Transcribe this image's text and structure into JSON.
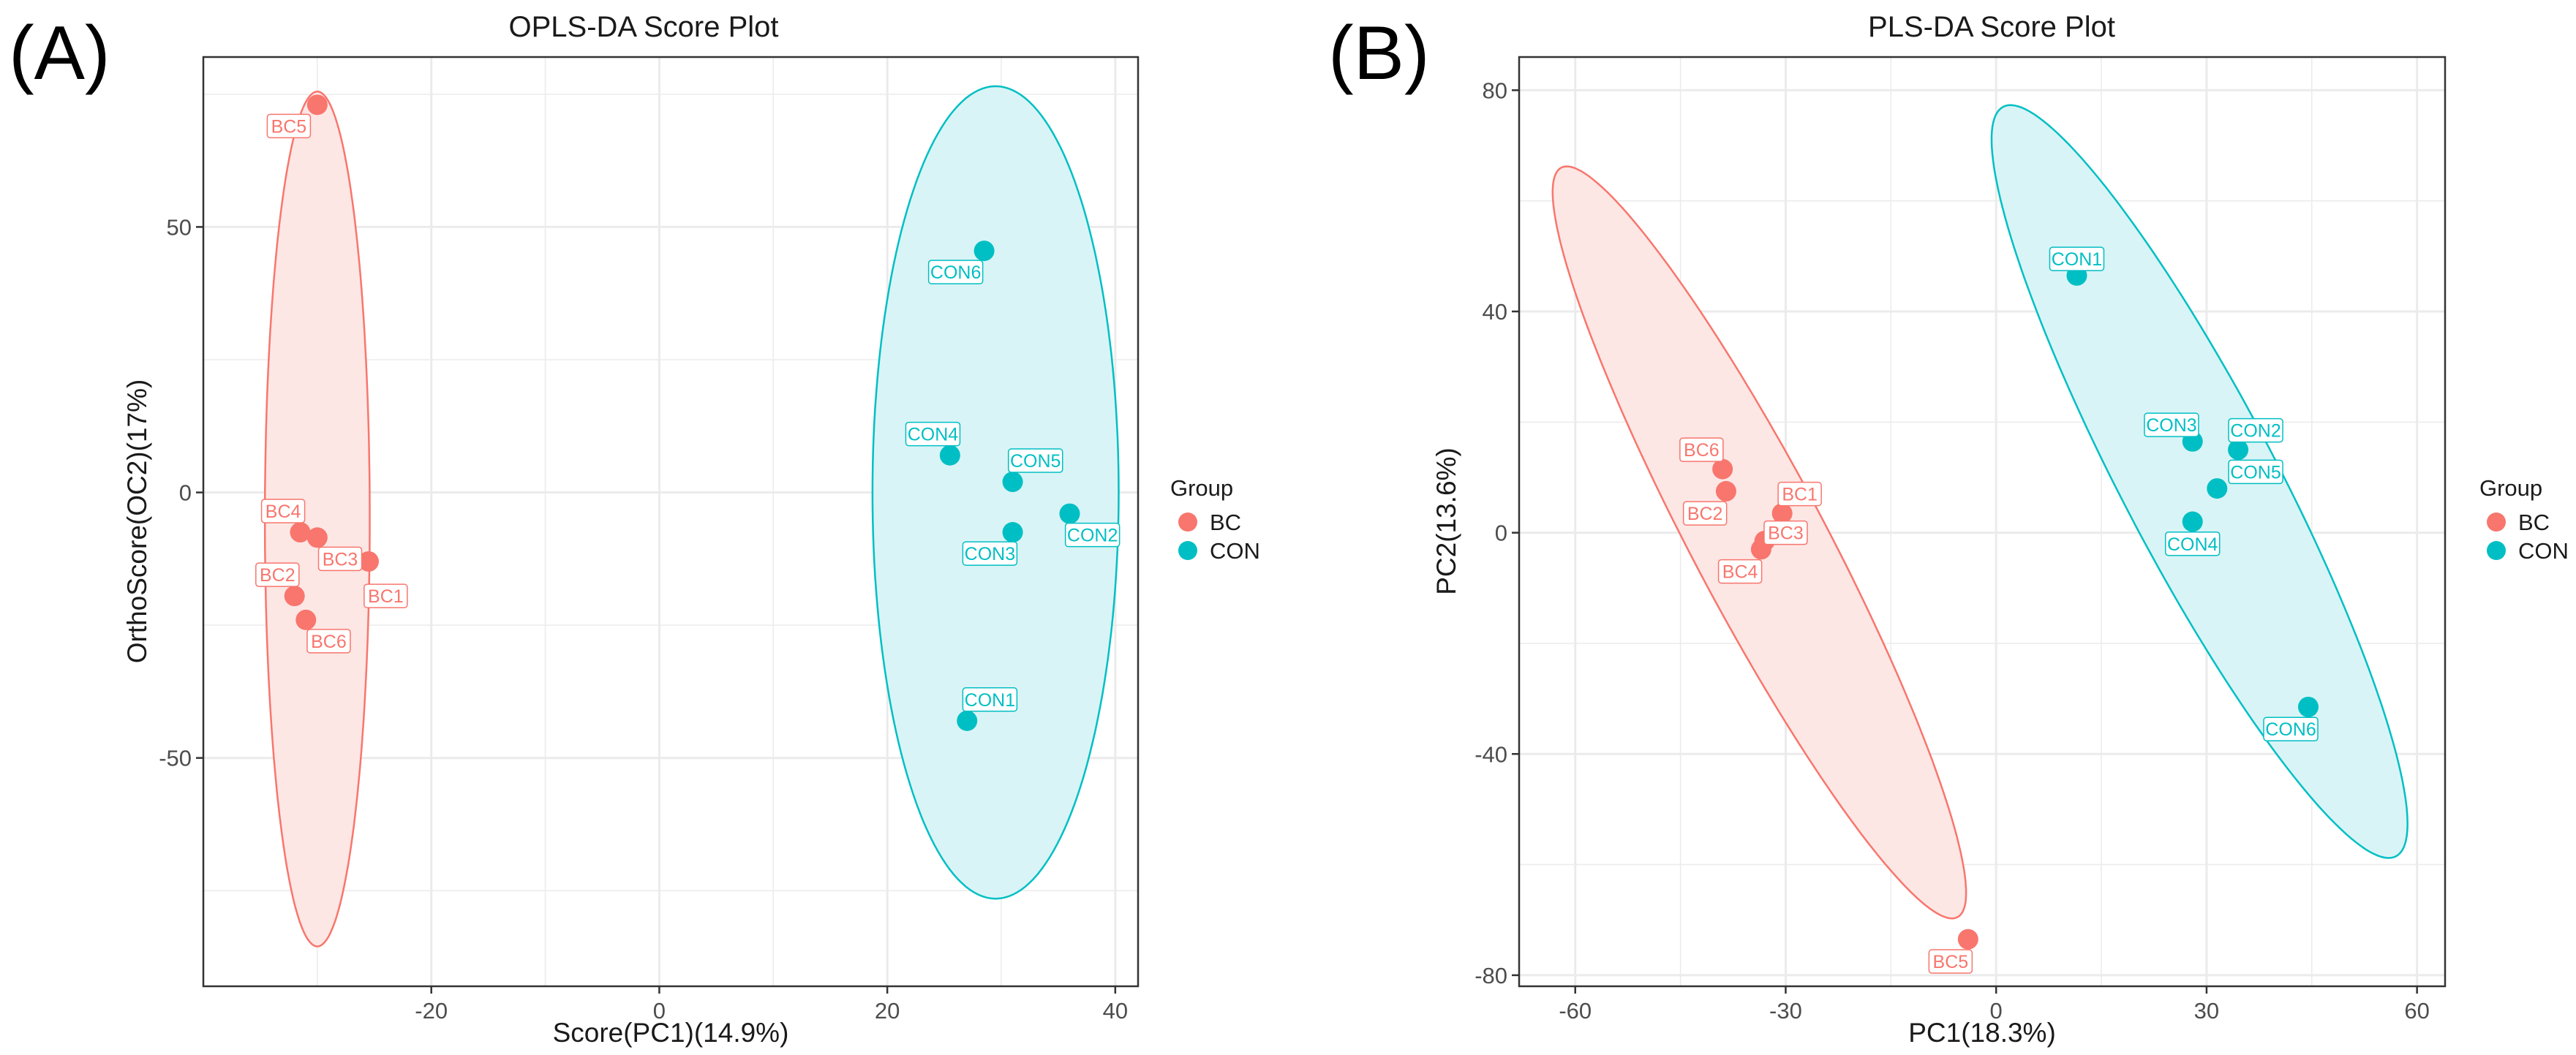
{
  "colors": {
    "BC": "#F8766D",
    "CON": "#00BFC4",
    "BC_fill": "#FDE7E5",
    "CON_fill": "#D9F4F6",
    "grid": "#ebebeb",
    "axis": "#333333"
  },
  "legend": {
    "title": "Group",
    "items": [
      {
        "label": "BC",
        "color": "#F8766D"
      },
      {
        "label": "CON",
        "color": "#00BFC4"
      }
    ]
  },
  "chart_data": [
    {
      "panel_letter": "(A)",
      "type": "scatter",
      "title": "OPLS-DA Score Plot",
      "xlabel": "Score(PC1)(14.9%)",
      "ylabel": "OrthoScore(OC2)(17%)",
      "xlim": [
        -40,
        42
      ],
      "ylim": [
        -93,
        82
      ],
      "xticks": [
        -20,
        0,
        20,
        40
      ],
      "yticks": [
        -50,
        0,
        50
      ],
      "xtick_labels": [
        "-20",
        "0",
        "20",
        "40"
      ],
      "ytick_labels": [
        "-50",
        "0",
        "50"
      ],
      "groups": [
        {
          "name": "BC",
          "color": "#F8766D",
          "fill": "#FDE7E5",
          "ellipse": {
            "cx": -30.0,
            "cy": -5.0,
            "rx": 4.6,
            "ry": 80.5,
            "angle_deg": 0
          }
        },
        {
          "name": "CON",
          "color": "#00BFC4",
          "fill": "#D9F4F6",
          "ellipse": {
            "cx": 29.5,
            "cy": 0.0,
            "rx": 10.8,
            "ry": 76.5,
            "angle_deg": 0
          }
        }
      ],
      "points": [
        {
          "label": "BC5",
          "group": "BC",
          "x": -30.0,
          "y": 73.0,
          "lx": -32.5,
          "ly": 69.0
        },
        {
          "label": "BC4",
          "group": "BC",
          "x": -31.5,
          "y": -7.5,
          "lx": -33.0,
          "ly": -3.5
        },
        {
          "label": "BC3",
          "group": "BC",
          "x": -30.0,
          "y": -8.5,
          "lx": -28.0,
          "ly": -12.5
        },
        {
          "label": "BC1",
          "group": "BC",
          "x": -25.5,
          "y": -13.0,
          "lx": -24.0,
          "ly": -19.5
        },
        {
          "label": "BC2",
          "group": "BC",
          "x": -32.0,
          "y": -19.5,
          "lx": -33.5,
          "ly": -15.5
        },
        {
          "label": "BC6",
          "group": "BC",
          "x": -31.0,
          "y": -24.0,
          "lx": -29.0,
          "ly": -28.0
        },
        {
          "label": "CON6",
          "group": "CON",
          "x": 28.5,
          "y": 45.5,
          "lx": 26.0,
          "ly": 41.5
        },
        {
          "label": "CON4",
          "group": "CON",
          "x": 25.5,
          "y": 7.0,
          "lx": 24.0,
          "ly": 11.0
        },
        {
          "label": "CON5",
          "group": "CON",
          "x": 31.0,
          "y": 2.0,
          "lx": 33.0,
          "ly": 6.0
        },
        {
          "label": "CON2",
          "group": "CON",
          "x": 36.0,
          "y": -4.0,
          "lx": 38.0,
          "ly": -8.0
        },
        {
          "label": "CON3",
          "group": "CON",
          "x": 31.0,
          "y": -7.5,
          "lx": 29.0,
          "ly": -11.5
        },
        {
          "label": "CON1",
          "group": "CON",
          "x": 27.0,
          "y": -43.0,
          "lx": 29.0,
          "ly": -39.0
        }
      ]
    },
    {
      "panel_letter": "(B)",
      "type": "scatter",
      "title": "PLS-DA Score Plot",
      "xlabel": "PC1(18.3%)",
      "ylabel": "PC2(13.6%)",
      "xlim": [
        -68,
        64
      ],
      "ylim": [
        -82,
        86
      ],
      "xticks": [
        -60,
        -30,
        0,
        30,
        60
      ],
      "yticks": [
        -80,
        -40,
        0,
        40,
        80
      ],
      "xtick_labels": [
        "-60",
        "-30",
        "0",
        "30",
        "60"
      ],
      "ytick_labels": [
        "-80",
        "-40",
        "0",
        "40",
        "80"
      ],
      "groups": [
        {
          "name": "BC",
          "color": "#F8766D",
          "fill": "#FDE7E5",
          "ellipse_endpoints": [
            [
              -62.0,
              66.0
            ],
            [
              -5.5,
              -69.5
            ]
          ],
          "semi_minor": 9.5
        },
        {
          "name": "CON",
          "color": "#00BFC4",
          "fill": "#D9F4F6",
          "ellipse_endpoints": [
            [
              1.0,
              77.0
            ],
            [
              57.0,
              -58.5
            ]
          ],
          "semi_minor": 11.0
        }
      ],
      "points": [
        {
          "label": "CON1",
          "group": "CON",
          "x": 11.5,
          "y": 46.5,
          "lx": 11.5,
          "ly": 49.5
        },
        {
          "label": "CON3",
          "group": "CON",
          "x": 28.0,
          "y": 16.5,
          "lx": 25.0,
          "ly": 19.5
        },
        {
          "label": "CON2",
          "group": "CON",
          "x": 34.5,
          "y": 15.0,
          "lx": 37.0,
          "ly": 18.5
        },
        {
          "label": "CON5",
          "group": "CON",
          "x": 31.5,
          "y": 8.0,
          "lx": 37.0,
          "ly": 11.0
        },
        {
          "label": "CON4",
          "group": "CON",
          "x": 28.0,
          "y": 2.0,
          "lx": 28.0,
          "ly": -2.0
        },
        {
          "label": "CON6",
          "group": "CON",
          "x": 44.5,
          "y": -31.5,
          "lx": 42.0,
          "ly": -35.5
        },
        {
          "label": "BC6",
          "group": "BC",
          "x": -39.0,
          "y": 11.5,
          "lx": -42.0,
          "ly": 15.0
        },
        {
          "label": "BC1",
          "group": "BC",
          "x": -30.5,
          "y": 3.5,
          "lx": -28.0,
          "ly": 7.0
        },
        {
          "label": "BC2",
          "group": "BC",
          "x": -38.5,
          "y": 7.5,
          "lx": -41.5,
          "ly": 3.5
        },
        {
          "label": "BC3",
          "group": "BC",
          "x": -33.0,
          "y": -1.5,
          "lx": -30.0,
          "ly": 0.0
        },
        {
          "label": "BC4",
          "group": "BC",
          "x": -33.5,
          "y": -3.0,
          "lx": -36.5,
          "ly": -7.0
        },
        {
          "label": "BC5",
          "group": "BC",
          "x": -4.0,
          "y": -73.5,
          "lx": -6.5,
          "ly": -77.5
        }
      ]
    }
  ]
}
